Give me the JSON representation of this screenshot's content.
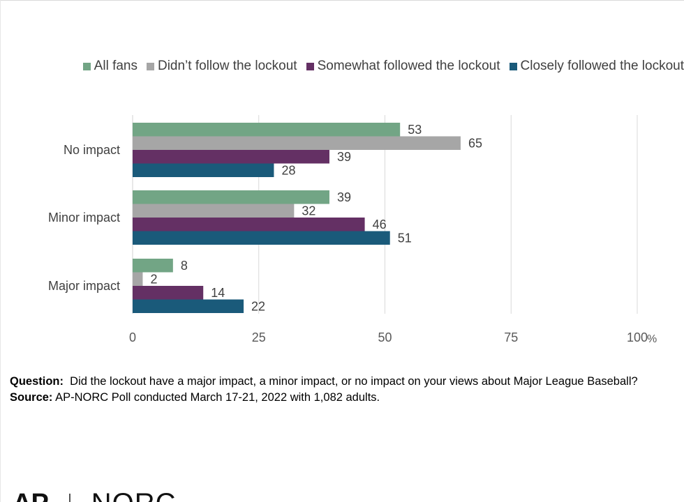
{
  "legend": {
    "items": [
      {
        "label": "All fans",
        "color": "#72a585"
      },
      {
        "label": "Didn’t follow the lockout",
        "color": "#a6a6a6"
      },
      {
        "label": "Somewhat followed the lockout",
        "color": "#643064"
      },
      {
        "label": "Closely followed the lockout",
        "color": "#1a5a7a"
      }
    ]
  },
  "chart_data": {
    "type": "bar",
    "orientation": "horizontal",
    "categories": [
      "No impact",
      "Minor impact",
      "Major impact"
    ],
    "series": [
      {
        "name": "All fans",
        "color": "#72a585",
        "values": [
          53,
          39,
          8
        ]
      },
      {
        "name": "Didn’t follow the lockout",
        "color": "#a6a6a6",
        "values": [
          65,
          32,
          2
        ]
      },
      {
        "name": "Somewhat followed the lockout",
        "color": "#643064",
        "values": [
          39,
          46,
          14
        ]
      },
      {
        "name": "Closely followed the lockout",
        "color": "#1a5a7a",
        "values": [
          28,
          51,
          22
        ]
      }
    ],
    "x_ticks": [
      "0",
      "25",
      "50",
      "75",
      "100"
    ],
    "x_unit": "%",
    "xlim": [
      0,
      100
    ],
    "grid": true,
    "legend_position": "top"
  },
  "notes": {
    "question_label": "Question:",
    "question_text": "Did the lockout have a major impact, a minor impact, or no impact on your views about Major League Baseball?",
    "source_label": "Source:",
    "source_text": "AP-NORC Poll conducted March 17-21, 2022 with 1,082 adults."
  },
  "logo": {
    "ap": "AP",
    "norc": "NORC"
  }
}
